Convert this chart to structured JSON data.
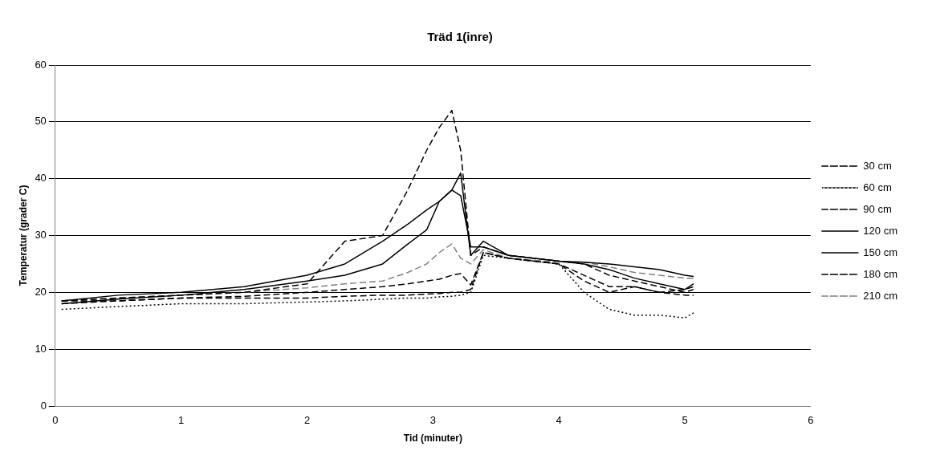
{
  "chart_data": {
    "type": "line",
    "title": "Träd 1(inre)",
    "xlabel": "Tid (minuter)",
    "ylabel": "Temperatur (grader C)",
    "x": [
      0.05,
      0.5,
      1,
      1.5,
      2,
      2.3,
      2.6,
      2.8,
      2.95,
      3.05,
      3.15,
      3.22,
      3.3,
      3.4,
      3.6,
      4.0,
      4.2,
      4.4,
      4.6,
      4.8,
      5.0,
      5.07
    ],
    "series": [
      {
        "name": "30 cm",
        "color": "#000000",
        "line_style": "dashed",
        "values": [
          18.5,
          18.5,
          19,
          19,
          19,
          19.3,
          19.5,
          19.5,
          19.7,
          19.8,
          20,
          20,
          20.5,
          27,
          26,
          25,
          23,
          21,
          21,
          20,
          19.5,
          19.5
        ]
      },
      {
        "name": "60 cm",
        "color": "#000000",
        "line_style": "dotted",
        "values": [
          17,
          17.5,
          18,
          18,
          18.3,
          18.5,
          18.8,
          19,
          19,
          19.2,
          19.3,
          19.5,
          20,
          26.5,
          26,
          25,
          20,
          17,
          16,
          16,
          15.5,
          16.4
        ]
      },
      {
        "name": "90 cm",
        "color": "#000000",
        "line_style": "dashed",
        "values": [
          18,
          18.5,
          19,
          19.3,
          20,
          20.5,
          21,
          21.5,
          22,
          22.3,
          23,
          23.3,
          21.3,
          27,
          26,
          25,
          22,
          20,
          21,
          20,
          20.5,
          21
        ]
      },
      {
        "name": "120 cm",
        "color": "#000000",
        "line_style": "solid",
        "values": [
          18.5,
          19.5,
          20,
          21,
          23,
          25,
          29,
          32,
          34.5,
          36,
          38,
          37,
          28,
          28,
          26.5,
          25.5,
          25.3,
          25,
          24.5,
          24,
          23,
          22.8
        ]
      },
      {
        "name": "150 cm",
        "color": "#000000",
        "line_style": "solid",
        "values": [
          18,
          18.8,
          19.5,
          20.5,
          22,
          23,
          25,
          28.5,
          31,
          36,
          38,
          41,
          26.5,
          29,
          26.5,
          25.5,
          25,
          24,
          22.5,
          21.5,
          20.5,
          21.5
        ]
      },
      {
        "name": "180 cm",
        "color": "#000000",
        "line_style": "dashed",
        "values": [
          18.5,
          19,
          19.5,
          20,
          21.5,
          29,
          30,
          38,
          45,
          49,
          52,
          45,
          26.5,
          28,
          26.5,
          25.5,
          25,
          23,
          22,
          21,
          20,
          20.5
        ]
      },
      {
        "name": "210 cm",
        "color": "#808080",
        "line_style": "dashed",
        "values": [
          18.5,
          19,
          19.5,
          20,
          20.8,
          21.5,
          22,
          23.5,
          25,
          27,
          28.5,
          26,
          25,
          27.5,
          26,
          25.3,
          25.3,
          24.5,
          23.5,
          23,
          22.5,
          22.5
        ]
      }
    ],
    "xlim": [
      0,
      6
    ],
    "xticks": [
      0,
      1,
      2,
      3,
      4,
      5,
      6
    ],
    "ylim": [
      0,
      60
    ],
    "yticks": [
      0,
      10,
      20,
      30,
      40,
      50,
      60
    ],
    "grid": "y",
    "legend": "right",
    "marker": "none"
  }
}
